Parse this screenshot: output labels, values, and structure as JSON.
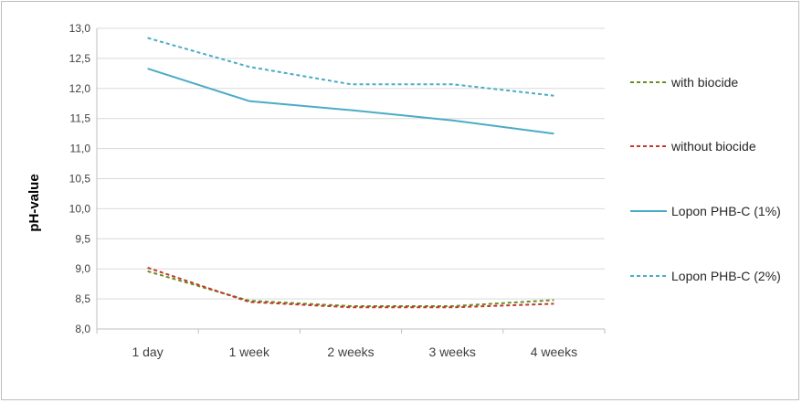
{
  "chart_data": {
    "type": "line",
    "title": "",
    "xlabel": "",
    "ylabel": "pH-value",
    "ylim": [
      8.0,
      13.0
    ],
    "y_ticks": [
      "8,0",
      "8,5",
      "9,0",
      "9,5",
      "10,0",
      "10,5",
      "11,0",
      "11,5",
      "12,0",
      "12,5",
      "13,0"
    ],
    "categories": [
      "1 day",
      "1 week",
      "2 weeks",
      "3 weeks",
      "4 weeks"
    ],
    "grid": true,
    "legend_position": "right",
    "series": [
      {
        "name": "with biocide",
        "values": [
          8.96,
          8.47,
          8.38,
          8.38,
          8.48
        ],
        "color": "#6b8e23",
        "dash": "dashed"
      },
      {
        "name": "without biocide",
        "values": [
          9.02,
          8.45,
          8.36,
          8.36,
          8.42
        ],
        "color": "#c0392b",
        "dash": "dashed"
      },
      {
        "name": "Lopon PHB-C (1%)",
        "values": [
          12.33,
          11.79,
          11.64,
          11.47,
          11.25
        ],
        "color": "#4bacc6",
        "dash": "solid"
      },
      {
        "name": "Lopon PHB-C (2%)",
        "values": [
          12.84,
          12.36,
          12.07,
          12.07,
          11.88
        ],
        "color": "#4bacc6",
        "dash": "dashed"
      }
    ]
  }
}
